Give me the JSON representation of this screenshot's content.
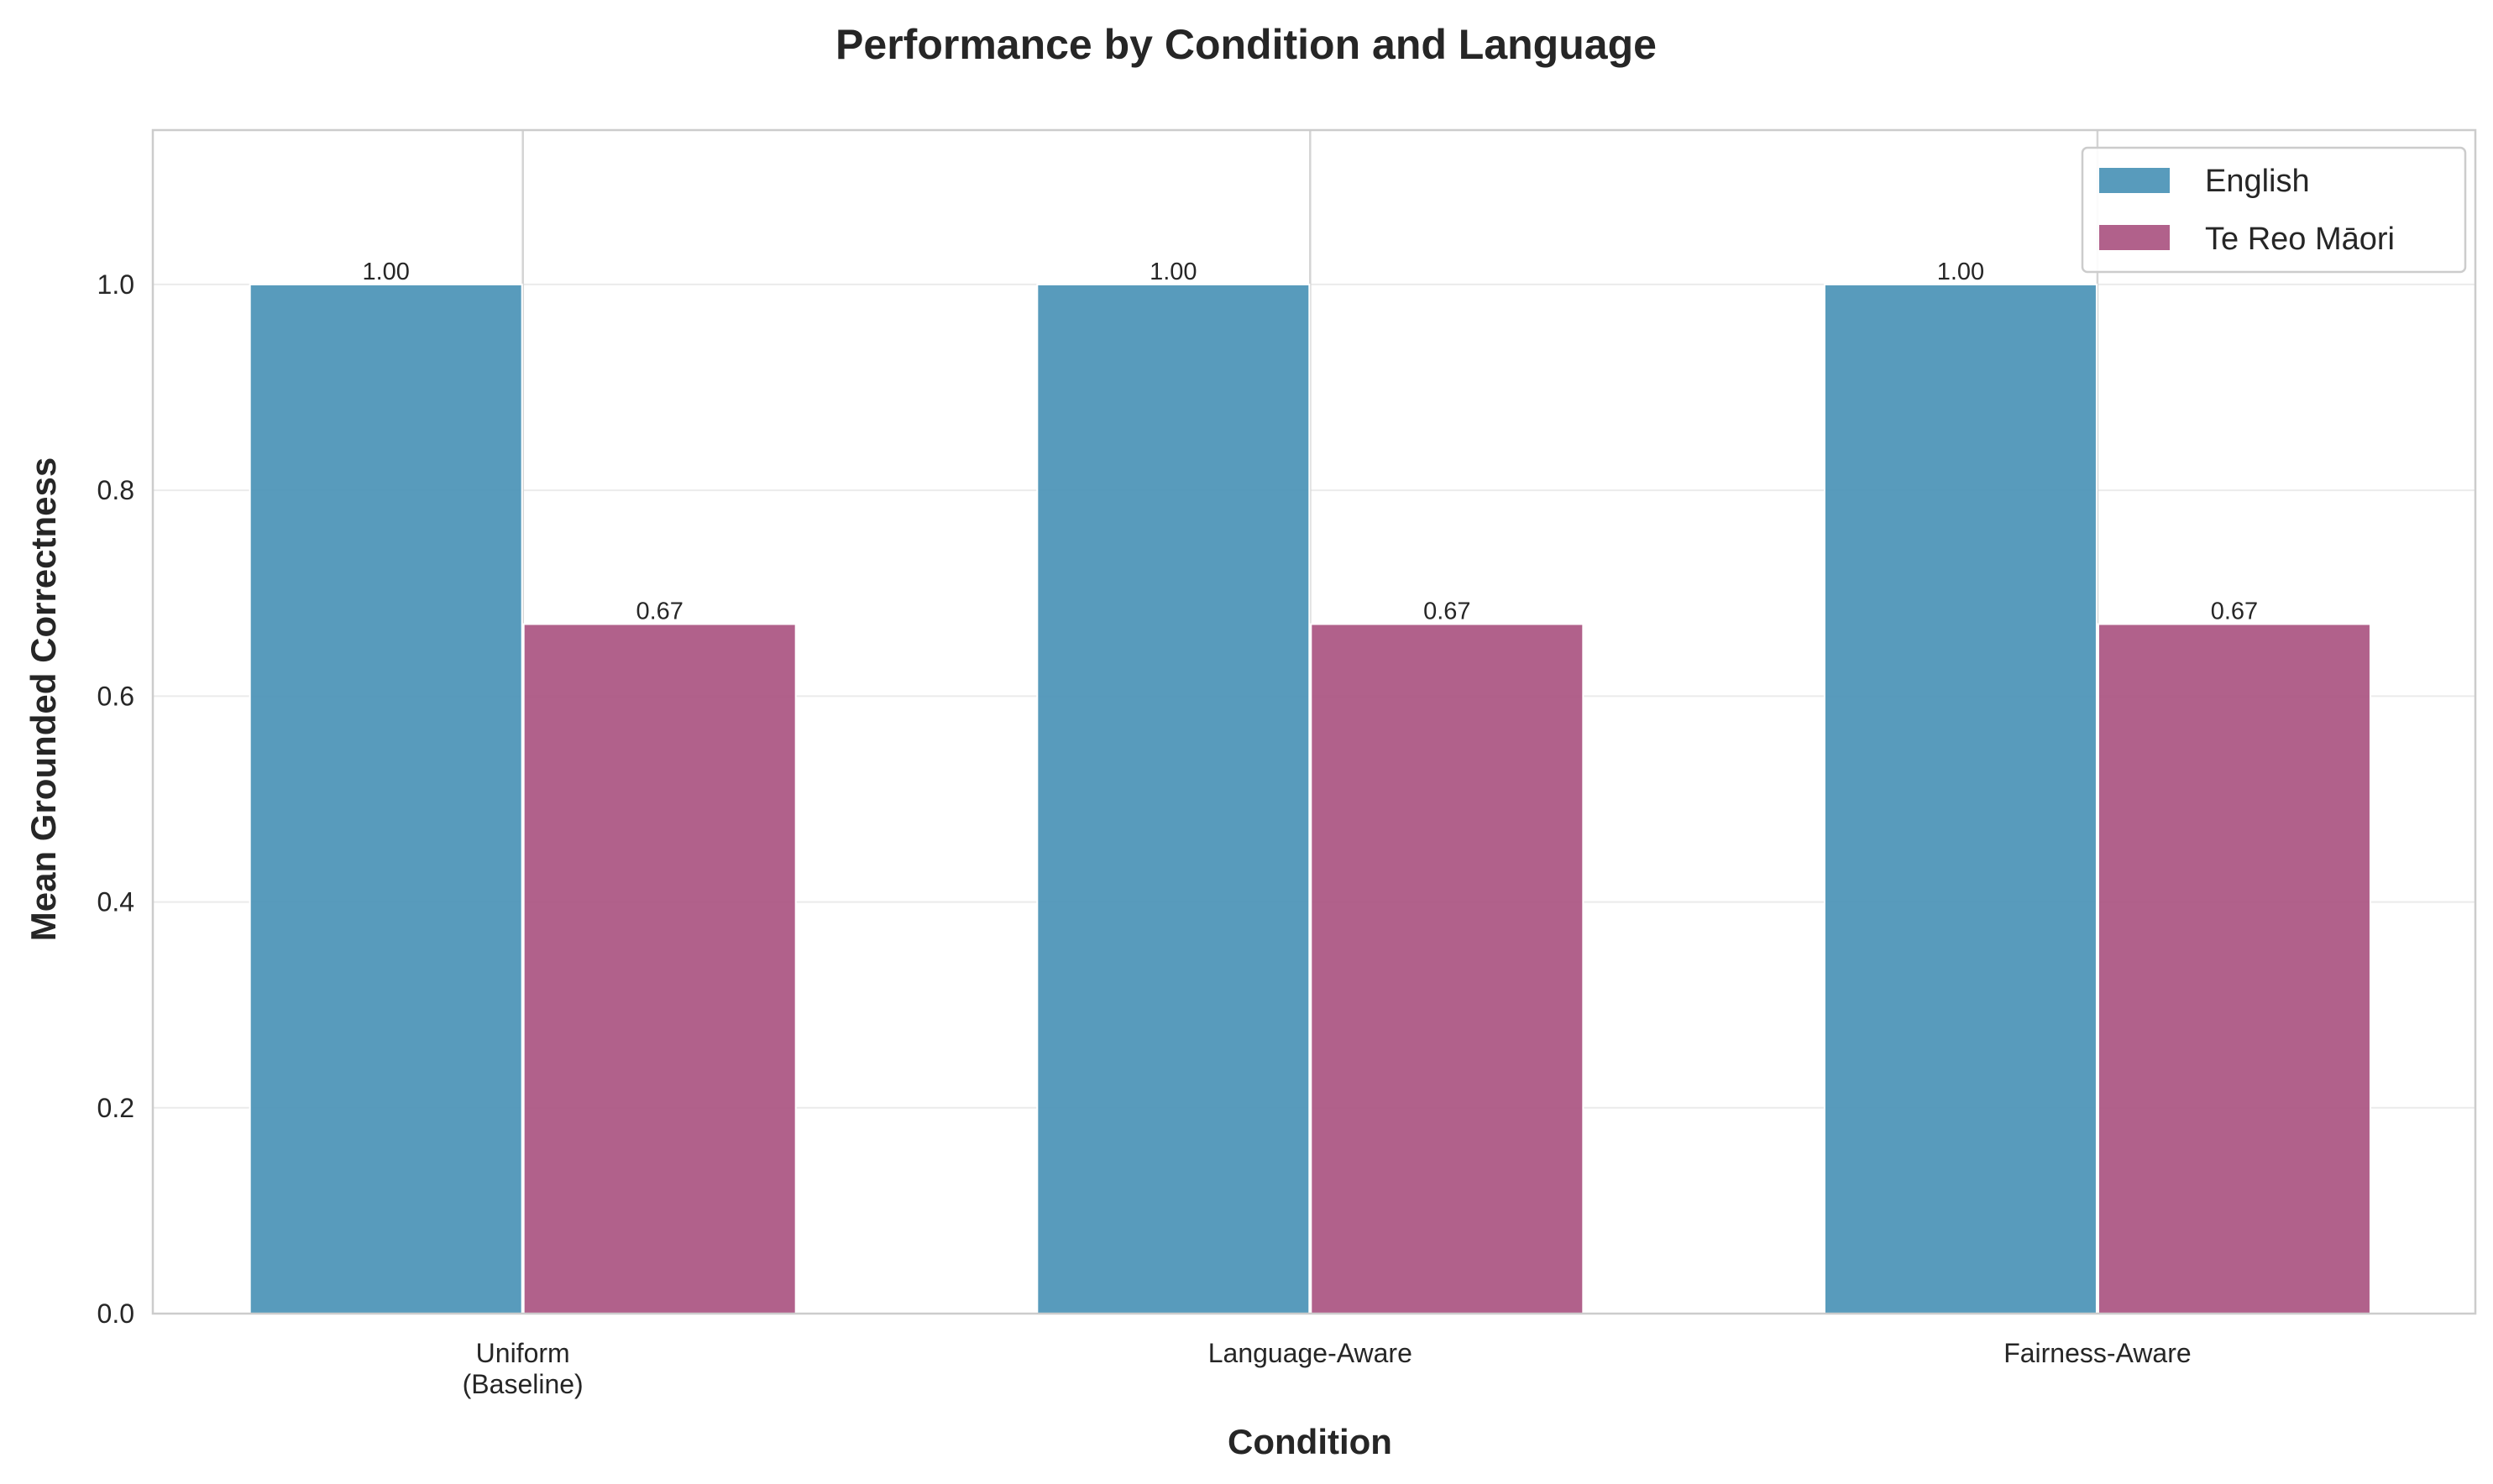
{
  "chart_data": {
    "type": "bar",
    "title": "Performance by Condition and Language",
    "xlabel": "Condition",
    "ylabel": "Mean Grounded Correctness",
    "categories": [
      [
        "Uniform",
        "(Baseline)"
      ],
      [
        "Language-Aware"
      ],
      [
        "Fairness-Aware"
      ]
    ],
    "series": [
      {
        "name": "English",
        "values": [
          1.0,
          1.0,
          1.0
        ],
        "labels": [
          "1.00",
          "1.00",
          "1.00"
        ],
        "color": "#4A93B6"
      },
      {
        "name": "Te Reo Māori",
        "values": [
          0.67,
          0.67,
          0.67
        ],
        "labels": [
          "0.67",
          "0.67",
          "0.67"
        ],
        "color": "#AA5481"
      }
    ],
    "ylim": [
      0,
      1.15
    ],
    "yticks": [
      0.0,
      0.2,
      0.4,
      0.6,
      0.8,
      1.0
    ],
    "ytick_labels": [
      "0.0",
      "0.2",
      "0.4",
      "0.6",
      "0.8",
      "1.0"
    ],
    "grid": true,
    "legend_position": "top-right"
  }
}
